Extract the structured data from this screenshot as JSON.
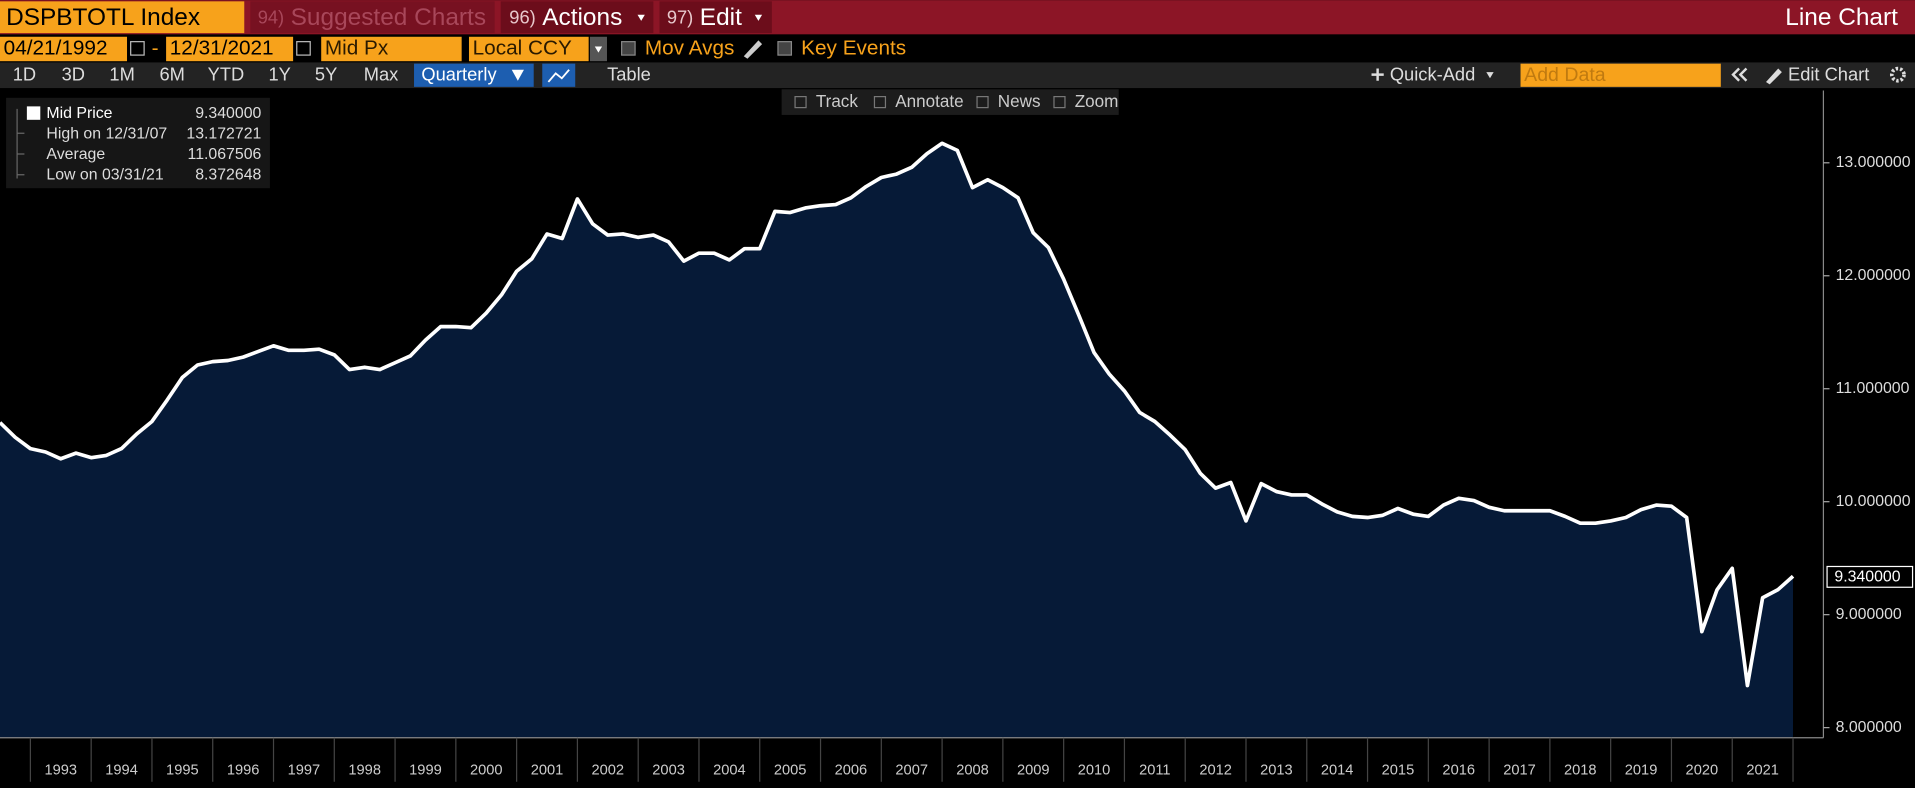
{
  "ui": {
    "ticker": "DSPBTOTL Index",
    "menus": [
      {
        "key": "94)",
        "label": "Suggested Charts"
      },
      {
        "key": "96)",
        "label": "Actions"
      },
      {
        "key": "97)",
        "label": "Edit"
      }
    ],
    "chart_kind": "Line Chart",
    "start_date": "04/21/1992",
    "date_sep": "-",
    "end_date": "12/31/2021",
    "field": "Mid Px",
    "currency": "Local CCY",
    "mov_avgs": "Mov Avgs",
    "key_events": "Key Events",
    "periods": [
      "1D",
      "3D",
      "1M",
      "6M",
      "YTD",
      "1Y",
      "5Y",
      "Max"
    ],
    "frequency": "Quarterly",
    "table": "Table",
    "quick_add": "Quick-Add",
    "add_data": "Add Data",
    "edit_chart": "Edit Chart",
    "tools": [
      "Track",
      "Annotate",
      "News",
      "Zoom"
    ],
    "legend": [
      {
        "label": "Mid Price",
        "value": "9.340000"
      },
      {
        "label": "High on 12/31/07",
        "value": "13.172721"
      },
      {
        "label": "Average",
        "value": "11.067506"
      },
      {
        "label": "Low on 03/31/21",
        "value": "8.372648"
      }
    ]
  },
  "chart_data": {
    "type": "area",
    "x": [
      1992.5,
      1992.75,
      1993,
      1993.25,
      1993.5,
      1993.75,
      1994,
      1994.25,
      1994.5,
      1994.75,
      1995,
      1995.25,
      1995.5,
      1995.75,
      1996,
      1996.25,
      1996.5,
      1996.75,
      1997,
      1997.25,
      1997.5,
      1997.75,
      1998,
      1998.25,
      1998.5,
      1998.75,
      1999,
      1999.25,
      1999.5,
      1999.75,
      2000,
      2000.25,
      2000.5,
      2000.75,
      2001,
      2001.25,
      2001.5,
      2001.75,
      2002,
      2002.25,
      2002.5,
      2002.75,
      2003,
      2003.25,
      2003.5,
      2003.75,
      2004,
      2004.25,
      2004.5,
      2004.75,
      2005,
      2005.25,
      2005.5,
      2005.75,
      2006,
      2006.25,
      2006.5,
      2006.75,
      2007,
      2007.25,
      2007.5,
      2007.75,
      2008,
      2008.25,
      2008.5,
      2008.75,
      2009,
      2009.25,
      2009.5,
      2009.75,
      2010,
      2010.25,
      2010.5,
      2010.75,
      2011,
      2011.25,
      2011.5,
      2011.75,
      2012,
      2012.25,
      2012.5,
      2012.75,
      2013,
      2013.25,
      2013.5,
      2013.75,
      2014,
      2014.25,
      2014.5,
      2014.75,
      2015,
      2015.25,
      2015.5,
      2015.75,
      2016,
      2016.25,
      2016.5,
      2016.75,
      2017,
      2017.25,
      2017.5,
      2017.75,
      2018,
      2018.25,
      2018.5,
      2018.75,
      2019,
      2019.25,
      2019.5,
      2019.75,
      2020,
      2020.25,
      2020.5,
      2020.75,
      2021,
      2021.25,
      2021.5,
      2021.75,
      2022
    ],
    "series": [
      {
        "name": "Mid Price",
        "color": "#ffffff",
        "fill": "#061a37",
        "values": [
          10.7,
          10.57,
          10.47,
          10.44,
          10.38,
          10.43,
          10.39,
          10.41,
          10.47,
          10.6,
          10.71,
          10.9,
          11.1,
          11.21,
          11.24,
          11.25,
          11.28,
          11.33,
          11.38,
          11.34,
          11.34,
          11.35,
          11.3,
          11.17,
          11.19,
          11.17,
          11.23,
          11.29,
          11.43,
          11.55,
          11.55,
          11.54,
          11.67,
          11.83,
          12.04,
          12.15,
          12.37,
          12.33,
          12.68,
          12.46,
          12.36,
          12.37,
          12.34,
          12.36,
          12.3,
          12.13,
          12.2,
          12.2,
          12.14,
          12.24,
          12.24,
          12.57,
          12.56,
          12.6,
          12.62,
          12.63,
          12.69,
          12.79,
          12.87,
          12.9,
          12.96,
          13.08,
          13.172721,
          13.11,
          12.78,
          12.85,
          12.78,
          12.69,
          12.38,
          12.25,
          11.97,
          11.65,
          11.32,
          11.13,
          10.98,
          10.79,
          10.71,
          10.59,
          10.46,
          10.25,
          10.12,
          10.17,
          9.83,
          10.16,
          10.09,
          10.06,
          10.06,
          9.98,
          9.91,
          9.87,
          9.86,
          9.88,
          9.94,
          9.89,
          9.87,
          9.97,
          10.03,
          10.01,
          9.95,
          9.92,
          9.92,
          9.92,
          9.92,
          9.87,
          9.81,
          9.81,
          9.83,
          9.86,
          9.93,
          9.97,
          9.96,
          9.86,
          8.85,
          9.22,
          9.41,
          8.372648,
          9.15,
          9.22,
          9.34
        ]
      }
    ],
    "last_label": "9.340000",
    "xlim": [
      1992.5,
      2022.5
    ],
    "xticks": [
      1993,
      1994,
      1995,
      1996,
      1997,
      1998,
      1999,
      2000,
      2001,
      2002,
      2003,
      2004,
      2005,
      2006,
      2007,
      2008,
      2009,
      2010,
      2011,
      2012,
      2013,
      2014,
      2015,
      2016,
      2017,
      2018,
      2019,
      2020,
      2021
    ],
    "ylim": [
      7.91,
      13.64
    ],
    "yticks": [
      {
        "value": 8,
        "label": "8.000000"
      },
      {
        "value": 9,
        "label": "9.000000"
      },
      {
        "value": 10,
        "label": "10.000000"
      },
      {
        "value": 11,
        "label": "11.000000"
      },
      {
        "value": 12,
        "label": "12.000000"
      },
      {
        "value": 13,
        "label": "13.000000"
      }
    ],
    "grid": false
  }
}
